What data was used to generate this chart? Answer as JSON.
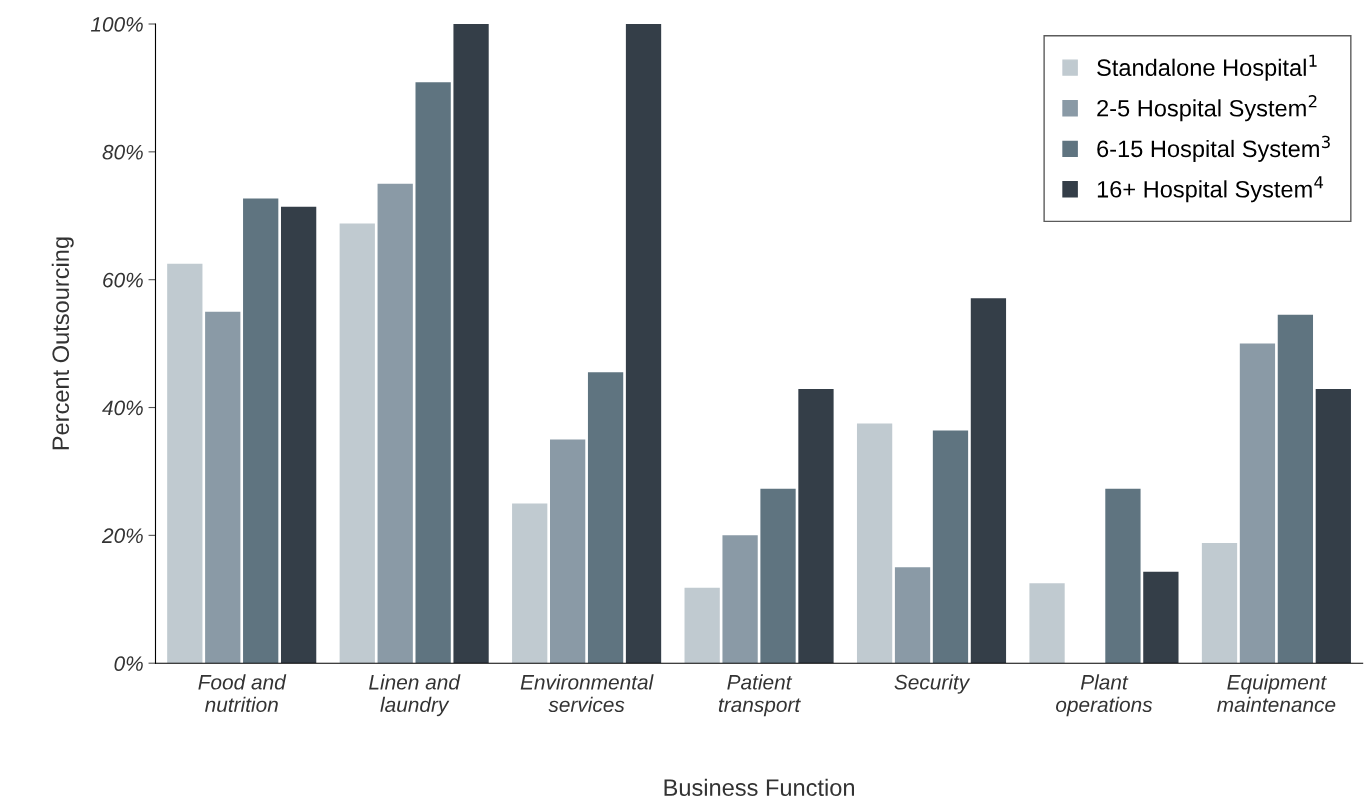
{
  "chart_data": {
    "type": "bar",
    "xlabel": "Business Function",
    "ylabel": "Percent Outsourcing",
    "categories": [
      "Food and\nnutrition",
      "Linen and\nlaundry",
      "Environmental\nservices",
      "Patient\ntransport",
      "Security",
      "Plant\noperations",
      "Equipment\nmaintenance"
    ],
    "series": [
      {
        "name": "Standalone Hospital$^{1}$",
        "color": "#c0cad0",
        "values": [
          62.5,
          68.8,
          25,
          11.8,
          37.5,
          12.5,
          18.8
        ]
      },
      {
        "name": "2-5 Hospital System$^{2}$",
        "color": "#8a9aa6",
        "values": [
          55,
          75,
          35,
          20,
          15,
          0,
          50
        ]
      },
      {
        "name": "6-15 Hospital System$^{3}$",
        "color": "#5f7480",
        "values": [
          72.7,
          90.9,
          45.5,
          27.3,
          36.4,
          27.3,
          54.5
        ]
      },
      {
        "name": "16+ Hospital System$^{4}$",
        "color": "#343e48",
        "values": [
          71.4,
          100,
          100,
          42.9,
          57.1,
          14.3,
          42.9
        ]
      }
    ],
    "ylim": [
      0,
      100
    ],
    "yticks": [
      {
        "value": 0,
        "label": "0%"
      },
      {
        "value": 20,
        "label": "20%"
      },
      {
        "value": 40,
        "label": "40%"
      },
      {
        "value": 60,
        "label": "60%"
      },
      {
        "value": 80,
        "label": "80%"
      },
      {
        "value": 100,
        "label": "100%"
      }
    ],
    "grid": false,
    "legend": "top right"
  }
}
